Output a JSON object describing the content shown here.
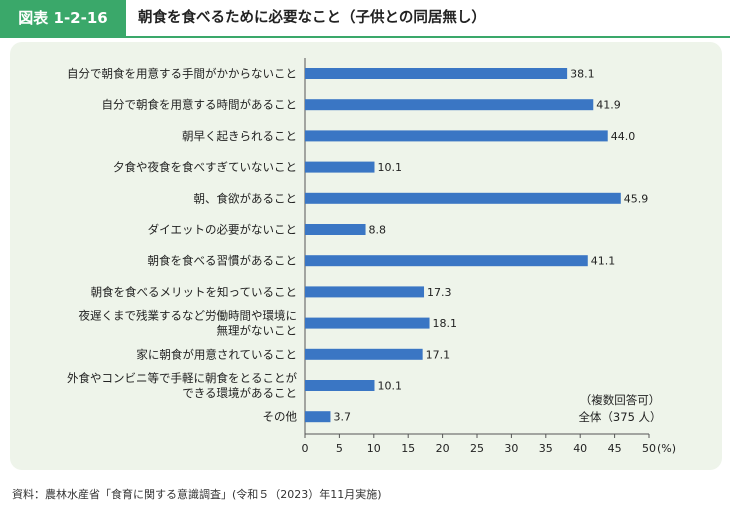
{
  "header": {
    "badge": "図表 1-2-16",
    "title": "朝食を食べるために必要なこと（子供との同居無し）"
  },
  "note": {
    "line1": "（複数回答可）",
    "line2": "全体（375 人）"
  },
  "source": "資料：農林水産省「食育に関する意識調査」(令和５（2023）年11月実施)",
  "colors": {
    "bar": "#3a76c4",
    "accent": "#3aa86a",
    "panel": "#eef4ea"
  },
  "chart_data": {
    "type": "bar",
    "orientation": "horizontal",
    "categories": [
      [
        "自分で朝食を用意する手間がかからないこと"
      ],
      [
        "自分で朝食を用意する時間があること"
      ],
      [
        "朝早く起きられること"
      ],
      [
        "夕食や夜食を食べすぎていないこと"
      ],
      [
        "朝、食欲があること"
      ],
      [
        "ダイエットの必要がないこと"
      ],
      [
        "朝食を食べる習慣があること"
      ],
      [
        "朝食を食べるメリットを知っていること"
      ],
      [
        "夜遅くまで残業するなど労働時間や環境に",
        "無理がないこと"
      ],
      [
        "家に朝食が用意されていること"
      ],
      [
        "外食やコンビニ等で手軽に朝食をとることが",
        "できる環境があること"
      ],
      [
        "その他"
      ]
    ],
    "values": [
      38.1,
      41.9,
      44.0,
      10.1,
      45.9,
      8.8,
      41.1,
      17.3,
      18.1,
      17.1,
      10.1,
      3.7
    ],
    "value_labels": [
      "38.1",
      "41.9",
      "44.0",
      "10.1",
      "45.9",
      "8.8",
      "41.1",
      "17.3",
      "18.1",
      "17.1",
      "10.1",
      "3.7"
    ],
    "xlim": [
      0,
      50
    ],
    "xticks": [
      0,
      5,
      10,
      15,
      20,
      25,
      30,
      35,
      40,
      45,
      50
    ],
    "xtick_labels": [
      "0",
      "5",
      "10",
      "15",
      "20",
      "25",
      "30",
      "35",
      "40",
      "45",
      "50"
    ],
    "xunit": "(%)",
    "title": "朝食を食べるために必要なこと（子供との同居無し）",
    "grid": false
  }
}
